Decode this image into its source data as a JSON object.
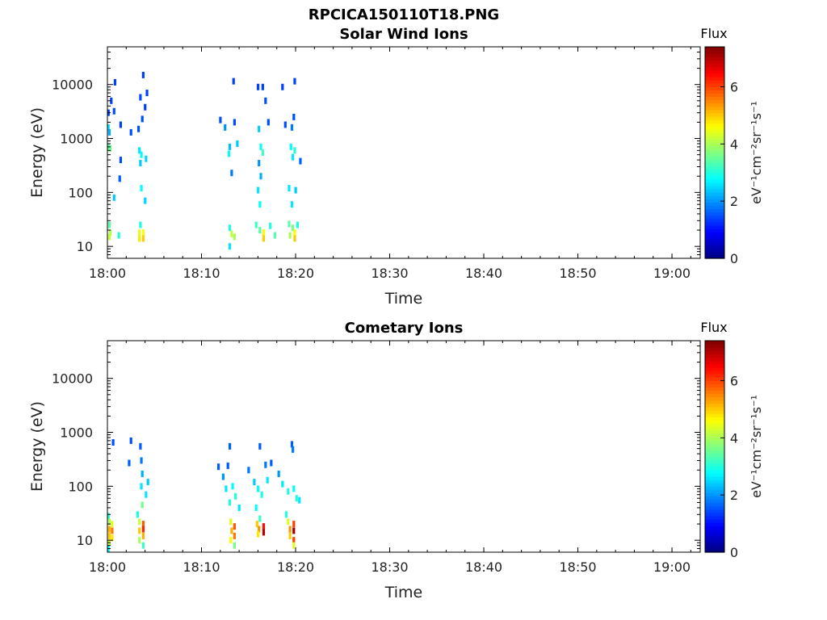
{
  "figure": {
    "title": "RPCICA150110T18.PNG"
  },
  "chart_data": [
    {
      "type": "heatmap",
      "title": "Solar Wind Ions",
      "xlabel": "Time",
      "ylabel": "Energy (eV)",
      "y_scale": "log",
      "ylim": [
        6,
        50000
      ],
      "xlim": [
        "18:00",
        "19:03"
      ],
      "x_ticks": [
        "18:00",
        "18:10",
        "18:20",
        "18:30",
        "18:40",
        "18:50",
        "19:00"
      ],
      "y_ticks": [
        "10",
        "100",
        "1000",
        "10000"
      ],
      "colorbar": {
        "title": "Flux",
        "unit": "eV⁻¹cm⁻²sr⁻¹s⁻¹",
        "range": [
          0,
          7.4
        ],
        "ticks": [
          "0",
          "2",
          "4",
          "6"
        ]
      },
      "cells": [
        {
          "t": 0.1,
          "e": 1600,
          "v": 2.6
        },
        {
          "t": 0.2,
          "e": 1300,
          "v": 2.2
        },
        {
          "t": 0.1,
          "e": 700,
          "v": 3.4
        },
        {
          "t": 0.3,
          "e": 650,
          "v": 3.6
        },
        {
          "t": 0.1,
          "e": 3000,
          "v": 1.4
        },
        {
          "t": 0.4,
          "e": 5000,
          "v": 1.4
        },
        {
          "t": 0.8,
          "e": 11000,
          "v": 1.4
        },
        {
          "t": 0.7,
          "e": 3200,
          "v": 1.5
        },
        {
          "t": 1.4,
          "e": 1800,
          "v": 1.4
        },
        {
          "t": 1.4,
          "e": 400,
          "v": 1.5
        },
        {
          "t": 1.3,
          "e": 180,
          "v": 1.6
        },
        {
          "t": 0.7,
          "e": 80,
          "v": 2.4
        },
        {
          "t": 0.2,
          "e": 25,
          "v": 3.4
        },
        {
          "t": 0.3,
          "e": 18,
          "v": 4.0
        },
        {
          "t": 0.2,
          "e": 15,
          "v": 4.2
        },
        {
          "t": 1.2,
          "e": 16,
          "v": 3.0
        },
        {
          "t": 2.5,
          "e": 1300,
          "v": 1.5
        },
        {
          "t": 3.3,
          "e": 1500,
          "v": 1.5
        },
        {
          "t": 3.5,
          "e": 5800,
          "v": 1.5
        },
        {
          "t": 3.8,
          "e": 15000,
          "v": 1.4
        },
        {
          "t": 4.0,
          "e": 3800,
          "v": 1.4
        },
        {
          "t": 4.2,
          "e": 7000,
          "v": 1.4
        },
        {
          "t": 3.7,
          "e": 2300,
          "v": 1.5
        },
        {
          "t": 3.4,
          "e": 600,
          "v": 2.6
        },
        {
          "t": 3.6,
          "e": 500,
          "v": 2.8
        },
        {
          "t": 3.5,
          "e": 350,
          "v": 2.4
        },
        {
          "t": 4.1,
          "e": 420,
          "v": 2.5
        },
        {
          "t": 3.6,
          "e": 120,
          "v": 2.8
        },
        {
          "t": 4.0,
          "e": 70,
          "v": 2.5
        },
        {
          "t": 3.5,
          "e": 25,
          "v": 3.0
        },
        {
          "t": 3.4,
          "e": 18,
          "v": 4.4
        },
        {
          "t": 3.8,
          "e": 18,
          "v": 4.6
        },
        {
          "t": 3.4,
          "e": 14,
          "v": 4.8
        },
        {
          "t": 3.8,
          "e": 14,
          "v": 5.0
        },
        {
          "t": 12.0,
          "e": 2200,
          "v": 1.5
        },
        {
          "t": 12.5,
          "e": 1600,
          "v": 2.0
        },
        {
          "t": 13.0,
          "e": 700,
          "v": 2.3
        },
        {
          "t": 13.5,
          "e": 2000,
          "v": 1.5
        },
        {
          "t": 13.4,
          "e": 11500,
          "v": 1.4
        },
        {
          "t": 13.2,
          "e": 230,
          "v": 1.8
        },
        {
          "t": 12.9,
          "e": 520,
          "v": 2.8
        },
        {
          "t": 13.8,
          "e": 800,
          "v": 2.4
        },
        {
          "t": 13.0,
          "e": 22,
          "v": 3.0
        },
        {
          "t": 13.2,
          "e": 17,
          "v": 4.2
        },
        {
          "t": 13.5,
          "e": 15,
          "v": 4.0
        },
        {
          "t": 13.0,
          "e": 10,
          "v": 2.6
        },
        {
          "t": 16.0,
          "e": 9000,
          "v": 1.4
        },
        {
          "t": 16.5,
          "e": 9000,
          "v": 1.4
        },
        {
          "t": 16.8,
          "e": 5000,
          "v": 1.5
        },
        {
          "t": 16.1,
          "e": 1500,
          "v": 2.4
        },
        {
          "t": 16.3,
          "e": 700,
          "v": 2.8
        },
        {
          "t": 16.5,
          "e": 550,
          "v": 3.2
        },
        {
          "t": 16.1,
          "e": 350,
          "v": 2.0
        },
        {
          "t": 16.3,
          "e": 200,
          "v": 2.2
        },
        {
          "t": 16.0,
          "e": 110,
          "v": 2.6
        },
        {
          "t": 16.2,
          "e": 60,
          "v": 2.8
        },
        {
          "t": 15.8,
          "e": 25,
          "v": 3.2
        },
        {
          "t": 16.2,
          "e": 20,
          "v": 3.4
        },
        {
          "t": 16.6,
          "e": 18,
          "v": 4.6
        },
        {
          "t": 16.6,
          "e": 14,
          "v": 5.0
        },
        {
          "t": 17.3,
          "e": 24,
          "v": 3.0
        },
        {
          "t": 17.8,
          "e": 16,
          "v": 3.4
        },
        {
          "t": 17.1,
          "e": 2000,
          "v": 1.5
        },
        {
          "t": 18.6,
          "e": 9000,
          "v": 1.4
        },
        {
          "t": 19.9,
          "e": 11500,
          "v": 1.4
        },
        {
          "t": 18.9,
          "e": 1800,
          "v": 1.5
        },
        {
          "t": 19.8,
          "e": 2500,
          "v": 1.5
        },
        {
          "t": 19.6,
          "e": 1600,
          "v": 1.8
        },
        {
          "t": 19.5,
          "e": 700,
          "v": 2.8
        },
        {
          "t": 19.9,
          "e": 600,
          "v": 3.0
        },
        {
          "t": 19.7,
          "e": 450,
          "v": 2.6
        },
        {
          "t": 20.5,
          "e": 380,
          "v": 1.6
        },
        {
          "t": 19.3,
          "e": 120,
          "v": 2.6
        },
        {
          "t": 20.0,
          "e": 110,
          "v": 2.4
        },
        {
          "t": 19.6,
          "e": 60,
          "v": 2.6
        },
        {
          "t": 19.3,
          "e": 26,
          "v": 3.4
        },
        {
          "t": 19.7,
          "e": 22,
          "v": 3.6
        },
        {
          "t": 20.2,
          "e": 25,
          "v": 3.0
        },
        {
          "t": 19.9,
          "e": 18,
          "v": 4.6
        },
        {
          "t": 19.9,
          "e": 14,
          "v": 5.0
        },
        {
          "t": 19.4,
          "e": 16,
          "v": 4.0
        }
      ]
    },
    {
      "type": "heatmap",
      "title": "Cometary Ions",
      "xlabel": "Time",
      "ylabel": "Energy (eV)",
      "y_scale": "log",
      "ylim": [
        6,
        50000
      ],
      "xlim": [
        "18:00",
        "19:03"
      ],
      "x_ticks": [
        "18:00",
        "18:10",
        "18:20",
        "18:30",
        "18:40",
        "18:50",
        "19:00"
      ],
      "y_ticks": [
        "10",
        "100",
        "1000",
        "10000"
      ],
      "colorbar": {
        "title": "Flux",
        "unit": "eV⁻¹cm⁻²sr⁻¹s⁻¹",
        "range": [
          0,
          7.4
        ],
        "ticks": [
          "0",
          "2",
          "4",
          "6"
        ]
      },
      "cells": [
        {
          "t": 0.6,
          "e": 650,
          "v": 1.5
        },
        {
          "t": 2.5,
          "e": 700,
          "v": 1.5
        },
        {
          "t": 2.3,
          "e": 270,
          "v": 1.6
        },
        {
          "t": 0.1,
          "e": 28,
          "v": 3.0
        },
        {
          "t": 0.2,
          "e": 22,
          "v": 4.0
        },
        {
          "t": 0.5,
          "e": 20,
          "v": 4.4
        },
        {
          "t": 0.2,
          "e": 16,
          "v": 5.2
        },
        {
          "t": 0.5,
          "e": 15,
          "v": 5.6
        },
        {
          "t": 0.2,
          "e": 12,
          "v": 5.0
        },
        {
          "t": 0.5,
          "e": 11,
          "v": 4.8
        },
        {
          "t": 0.2,
          "e": 9,
          "v": 4.2
        },
        {
          "t": 0.1,
          "e": 7,
          "v": 2.8
        },
        {
          "t": 3.5,
          "e": 550,
          "v": 1.6
        },
        {
          "t": 3.6,
          "e": 300,
          "v": 1.8
        },
        {
          "t": 3.7,
          "e": 170,
          "v": 2.2
        },
        {
          "t": 3.6,
          "e": 100,
          "v": 2.6
        },
        {
          "t": 4.3,
          "e": 120,
          "v": 2.4
        },
        {
          "t": 4.1,
          "e": 70,
          "v": 2.6
        },
        {
          "t": 3.7,
          "e": 45,
          "v": 3.6
        },
        {
          "t": 3.2,
          "e": 30,
          "v": 3.0
        },
        {
          "t": 3.4,
          "e": 22,
          "v": 4.2
        },
        {
          "t": 3.8,
          "e": 20,
          "v": 5.8
        },
        {
          "t": 3.8,
          "e": 16,
          "v": 6.2
        },
        {
          "t": 3.4,
          "e": 15,
          "v": 5.0
        },
        {
          "t": 3.8,
          "e": 12,
          "v": 5.2
        },
        {
          "t": 3.4,
          "e": 10,
          "v": 4.0
        },
        {
          "t": 3.8,
          "e": 8,
          "v": 3.2
        },
        {
          "t": 11.8,
          "e": 230,
          "v": 1.6
        },
        {
          "t": 12.3,
          "e": 150,
          "v": 2.0
        },
        {
          "t": 12.6,
          "e": 90,
          "v": 2.6
        },
        {
          "t": 13.0,
          "e": 550,
          "v": 1.6
        },
        {
          "t": 13.3,
          "e": 100,
          "v": 2.8
        },
        {
          "t": 13.6,
          "e": 65,
          "v": 3.0
        },
        {
          "t": 13.0,
          "e": 50,
          "v": 3.0
        },
        {
          "t": 14.0,
          "e": 40,
          "v": 2.6
        },
        {
          "t": 13.1,
          "e": 22,
          "v": 4.4
        },
        {
          "t": 13.5,
          "e": 18,
          "v": 5.8
        },
        {
          "t": 13.2,
          "e": 15,
          "v": 5.2
        },
        {
          "t": 13.5,
          "e": 12,
          "v": 5.6
        },
        {
          "t": 13.1,
          "e": 10,
          "v": 4.6
        },
        {
          "t": 13.5,
          "e": 8,
          "v": 3.6
        },
        {
          "t": 12.8,
          "e": 240,
          "v": 1.6
        },
        {
          "t": 15.0,
          "e": 200,
          "v": 1.8
        },
        {
          "t": 15.6,
          "e": 120,
          "v": 2.4
        },
        {
          "t": 16.2,
          "e": 550,
          "v": 1.6
        },
        {
          "t": 16.0,
          "e": 90,
          "v": 2.8
        },
        {
          "t": 16.4,
          "e": 70,
          "v": 3.0
        },
        {
          "t": 16.8,
          "e": 250,
          "v": 1.8
        },
        {
          "t": 17.0,
          "e": 130,
          "v": 2.6
        },
        {
          "t": 15.8,
          "e": 40,
          "v": 2.8
        },
        {
          "t": 16.2,
          "e": 25,
          "v": 3.2
        },
        {
          "t": 15.9,
          "e": 20,
          "v": 5.0
        },
        {
          "t": 16.6,
          "e": 18,
          "v": 6.4
        },
        {
          "t": 16.1,
          "e": 16,
          "v": 5.4
        },
        {
          "t": 16.6,
          "e": 14,
          "v": 7.0
        },
        {
          "t": 16.0,
          "e": 13,
          "v": 4.8
        },
        {
          "t": 17.4,
          "e": 270,
          "v": 1.6
        },
        {
          "t": 18.2,
          "e": 170,
          "v": 2.0
        },
        {
          "t": 18.6,
          "e": 110,
          "v": 2.6
        },
        {
          "t": 19.6,
          "e": 600,
          "v": 1.6
        },
        {
          "t": 19.7,
          "e": 480,
          "v": 1.8
        },
        {
          "t": 19.2,
          "e": 80,
          "v": 3.0
        },
        {
          "t": 19.8,
          "e": 90,
          "v": 2.8
        },
        {
          "t": 20.1,
          "e": 60,
          "v": 3.0
        },
        {
          "t": 20.4,
          "e": 55,
          "v": 2.6
        },
        {
          "t": 19.0,
          "e": 30,
          "v": 3.0
        },
        {
          "t": 19.2,
          "e": 22,
          "v": 4.4
        },
        {
          "t": 19.8,
          "e": 20,
          "v": 6.0
        },
        {
          "t": 19.4,
          "e": 16,
          "v": 5.4
        },
        {
          "t": 19.8,
          "e": 15,
          "v": 7.2
        },
        {
          "t": 19.4,
          "e": 12,
          "v": 5.0
        },
        {
          "t": 19.8,
          "e": 10,
          "v": 6.0
        },
        {
          "t": 19.8,
          "e": 8,
          "v": 4.4
        }
      ]
    }
  ]
}
